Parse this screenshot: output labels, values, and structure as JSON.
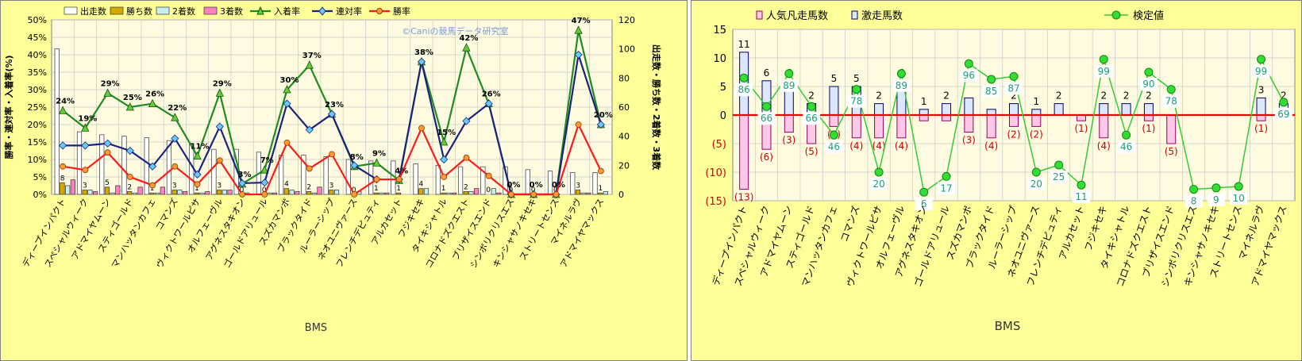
{
  "colors": {
    "plot_bg": "#fffbe0",
    "panel_bg": "#ffff99",
    "grid": "#c8c8c8",
    "runs": "#ffffff",
    "wins": "#d4aa00",
    "second": "#c8eef0",
    "third": "#ff80c0",
    "place_rate": "#1e8c1e",
    "rentai_rate": "#1a237e",
    "win_rate": "#ff1a1a",
    "win_rate_marker": "#ff9933",
    "popular_bar": "#dde6ff",
    "dark_bar": "#ffc8e6",
    "kentei": "#33cc33",
    "zero_line": "#e60000",
    "negative_label": "#cc0000"
  },
  "chart_data": [
    {
      "type": "bar",
      "combo": "bar+line",
      "xlabel": "BMS",
      "ylabel": "勝率・連対率・入着率(%)",
      "y2label": "出走数・勝ち数・2着数・3着数",
      "ylim": [
        0,
        50
      ],
      "y2lim": [
        0,
        120
      ],
      "grid": true,
      "legend": "top",
      "watermark": "©Caniの競馬データ研究室",
      "categories": [
        "ディープインパクト",
        "スペシャルウィーク",
        "アドマイヤムーン",
        "スティゴールド",
        "マンハッタンカフェ",
        "コマンズ",
        "ヴィクトワールピサ",
        "オルフェーヴル",
        "アグネスタキオン",
        "ゴールドアリュール",
        "スズカマンボ",
        "ブラックタイド",
        "ルーラーシップ",
        "ネオユニヴァース",
        "フレンチデピュティ",
        "アルカセット",
        "フジキセキ",
        "タイキシャトル",
        "コロナドズクエスト",
        "ブリザイスエンド",
        "シンボリクリスエス",
        "キンシャサノキセキ",
        "ストリートセンス",
        "マイネルラヴ",
        "アドマイヤマックス"
      ],
      "bar_series": [
        {
          "name": "出走数",
          "axis": "y2",
          "values": [
            100,
            43,
            41,
            40,
            39,
            37,
            35,
            31,
            31,
            29,
            27,
            27,
            26,
            24,
            23,
            23,
            21,
            20,
            19,
            19,
            19,
            17,
            16,
            15,
            15
          ]
        },
        {
          "name": "勝ち数",
          "axis": "y2",
          "values": [
            8,
            3,
            5,
            2,
            1,
            3,
            1,
            3,
            0,
            0,
            4,
            2,
            3,
            0,
            1,
            1,
            4,
            1,
            2,
            0,
            0,
            0,
            0,
            3,
            1
          ]
        },
        {
          "name": "2着数",
          "axis": "y2",
          "values": [
            6,
            3,
            1,
            1,
            1,
            3,
            1,
            3,
            1,
            1,
            3,
            1,
            3,
            2,
            1,
            0,
            4,
            1,
            2,
            4,
            0,
            0,
            0,
            1,
            2
          ]
        },
        {
          "name": "3着数",
          "axis": "y2",
          "values": [
            10,
            2,
            6,
            5,
            5,
            2,
            2,
            3,
            0,
            1,
            2,
            5,
            0,
            0,
            1,
            0,
            0,
            1,
            4,
            1,
            0,
            0,
            0,
            1,
            0
          ]
        }
      ],
      "line_series": [
        {
          "name": "入着率",
          "axis": "y",
          "values": [
            24,
            19,
            29,
            25,
            26,
            22,
            11,
            29,
            3,
            7,
            30,
            37,
            23,
            8,
            9,
            4,
            38,
            15,
            42,
            26,
            0,
            0,
            0,
            47,
            20
          ]
        },
        {
          "name": "連対率",
          "axis": "y",
          "values": [
            14,
            14,
            14.6,
            12.5,
            8,
            16,
            5.7,
            19.4,
            3.2,
            3.4,
            26,
            18.5,
            23,
            8.3,
            4.3,
            4.3,
            38,
            10,
            21,
            26,
            0,
            0,
            0,
            40,
            20
          ]
        },
        {
          "name": "勝率",
          "axis": "y",
          "values": [
            8,
            7,
            12,
            5,
            2.6,
            8,
            2.9,
            9.7,
            0,
            0,
            14.8,
            7.4,
            11.5,
            0,
            4.3,
            4.3,
            19,
            5,
            10.5,
            5.3,
            0,
            0,
            0,
            20,
            6.7
          ]
        }
      ],
      "data_labels": {
        "place_rate": [
          "24%",
          "19%",
          "29%",
          "25%",
          "26%",
          "22%",
          "11%",
          "29%",
          "3%",
          "7%",
          "30%",
          "37%",
          "23%",
          "8%",
          "9%",
          "4%",
          "38%",
          "15%",
          "42%",
          "26%",
          "0%",
          "0%",
          "0%",
          "47%",
          "20%"
        ],
        "runs": [
          "",
          "",
          "",
          "",
          "",
          "",
          "",
          "",
          "",
          "",
          "",
          "",
          "",
          "",
          "",
          "",
          "",
          "",
          "",
          "",
          "",
          "",
          "",
          "",
          ""
        ],
        "wins": [
          "8",
          "3",
          "5",
          "2",
          "1",
          "3",
          "1",
          "3",
          "0",
          "0",
          "4",
          "2",
          "3",
          "0",
          "1",
          "1",
          "4",
          "1",
          "2",
          "0",
          "0",
          "0",
          "0",
          "3",
          "1"
        ]
      },
      "legend_entries": [
        "出走数",
        "勝ち数",
        "2着数",
        "3着数",
        "入着率",
        "連対率",
        "勝率"
      ],
      "y_ticks": [
        "0%",
        "5%",
        "10%",
        "15%",
        "20%",
        "25%",
        "30%",
        "35%",
        "40%",
        "45%",
        "50%"
      ],
      "y2_ticks": [
        "0",
        "20",
        "40",
        "60",
        "80",
        "100",
        "120"
      ]
    },
    {
      "type": "bar",
      "combo": "bar+line",
      "xlabel": "BMS",
      "ylim": [
        -15,
        15
      ],
      "grid": true,
      "legend": "top",
      "categories": [
        "ディープインパクト",
        "スペシャルウィーク",
        "アドマイヤムーン",
        "スティゴールド",
        "マンハッタンカフェ",
        "コマンズ",
        "ヴィクトワールピサ",
        "オルフェーヴル",
        "アグネスタキオン",
        "ゴールドアリュール",
        "スズカマンボ",
        "ブラックタイド",
        "ルーラーシップ",
        "ネオユニヴァース",
        "フレンチデピュティ",
        "アルカセット",
        "フジキセキ",
        "タイキシャトル",
        "コロナドズクエスト",
        "ブリザイスエンド",
        "シンボリクリスエス",
        "キンシャサノキセキ",
        "ストリートセンス",
        "マイネルラヴ",
        "アドマイヤマックス"
      ],
      "bar_series": [
        {
          "name": "人気凡走馬数",
          "values": [
            -13,
            -6,
            -3,
            -5,
            -2,
            -4,
            -4,
            -4,
            -1,
            -1,
            -3,
            -4,
            -2,
            -2,
            0,
            -1,
            -4,
            0,
            -1,
            -5,
            0,
            0,
            0,
            -1,
            0
          ]
        },
        {
          "name": "激走馬数",
          "values": [
            11,
            6,
            6,
            2,
            5,
            5,
            2,
            6,
            1,
            2,
            3,
            1,
            2,
            1,
            2,
            0,
            2,
            2,
            2,
            0,
            0,
            0,
            0,
            3,
            2
          ]
        }
      ],
      "line_series": [
        {
          "name": "検定値",
          "values": [
            86,
            66,
            89,
            66,
            46,
            78,
            20,
            89,
            6,
            17,
            96,
            85,
            87,
            20,
            25,
            11,
            99,
            46,
            90,
            78,
            8,
            9,
            10,
            99,
            69
          ]
        }
      ],
      "data_labels": {
        "positive": [
          "11",
          "6",
          "6",
          "2",
          "5",
          "5",
          "2",
          "6",
          "1",
          "2",
          "",
          "",
          "2",
          "1",
          "2",
          "",
          "2",
          "2",
          "2",
          "",
          "",
          "",
          "",
          "3",
          "2"
        ],
        "negative": [
          "(13)",
          "(6)",
          "(3)",
          "(5)",
          "(2)",
          "(4)",
          "(4)",
          "(4)",
          "",
          "",
          "(3)",
          "(4)",
          "(2)",
          "(2)",
          "",
          "(1)",
          "(4)",
          "",
          "(1)",
          "(5)",
          "",
          "",
          "",
          "(1)",
          ""
        ]
      },
      "legend_entries": [
        "人気凡走馬数",
        "激走馬数",
        "検定値"
      ],
      "y_ticks": [
        "(15)",
        "(10)",
        "(5)",
        "0",
        "5",
        "10",
        "15"
      ]
    }
  ]
}
